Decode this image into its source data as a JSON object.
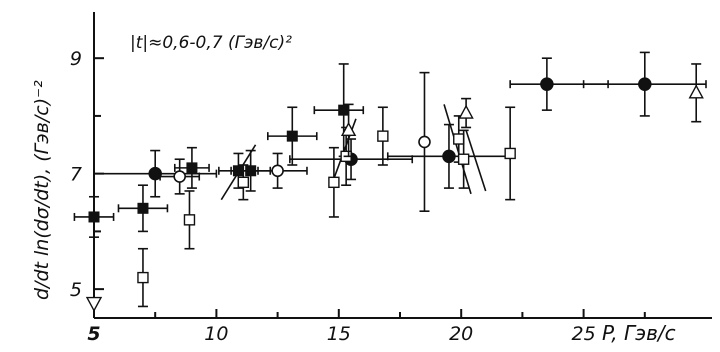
{
  "chart_data": {
    "type": "scatter",
    "title": "",
    "annotation": "|t|≈0,6-0,7 (Гэв/с)²",
    "xlabel": "P, Гэв/с",
    "ylabel": "d/dt ln(dσ/dt), (Гэв/с)⁻²",
    "xlim": [
      5,
      30
    ],
    "ylim": [
      4.5,
      9.8
    ],
    "x_ticks": [
      5,
      10,
      15,
      20,
      25
    ],
    "x_tick_labels": [
      "5",
      "10",
      "15",
      "20",
      "25"
    ],
    "y_ticks": [
      5,
      7,
      9
    ],
    "y_tick_labels": [
      "5",
      "7",
      "9"
    ],
    "grid": false,
    "series": [
      {
        "marker": "filled-circle",
        "points": [
          {
            "x": 7.5,
            "y": 7.0,
            "yerr": 0.4,
            "xerr": [
              2.5,
              2.5
            ]
          },
          {
            "x": 15.5,
            "y": 7.25,
            "yerr": 0.35,
            "xerr": [
              2.5,
              2.5
            ]
          },
          {
            "x": 19.5,
            "y": 7.3,
            "yerr": 0.55,
            "xerr": [
              2.5,
              2.5
            ]
          },
          {
            "x": 23.5,
            "y": 8.55,
            "yerr": 0.45,
            "xerr": [
              1.5,
              2.5
            ]
          },
          {
            "x": 27.5,
            "y": 8.55,
            "yerr": 0.55,
            "xerr": [
              2.5,
              2.5
            ]
          }
        ]
      },
      {
        "marker": "filled-square",
        "points": [
          {
            "x": 5.0,
            "y": 6.25,
            "yerr": 0.35,
            "xerr": [
              0.8,
              0.8
            ]
          },
          {
            "x": 7.0,
            "y": 6.4,
            "yerr": 0.4,
            "xerr": [
              1.0,
              1.0
            ]
          },
          {
            "x": 9.0,
            "y": 7.1,
            "yerr": 0.35,
            "xerr": [
              0.7,
              0.7
            ]
          },
          {
            "x": 10.9,
            "y": 7.05,
            "yerr": 0.3,
            "xerr": [
              0.8,
              0.8
            ]
          },
          {
            "x": 11.4,
            "y": 7.05,
            "yerr": 0.35,
            "xerr": [
              0.8,
              0.8
            ]
          },
          {
            "x": 13.1,
            "y": 7.65,
            "yerr": 0.5,
            "xerr": [
              1.0,
              1.0
            ]
          },
          {
            "x": 15.2,
            "y": 8.1,
            "yerr": 0.8,
            "xerr": [
              1.2,
              0.8
            ]
          }
        ]
      },
      {
        "marker": "open-circle",
        "points": [
          {
            "x": 8.5,
            "y": 6.95,
            "yerr": 0.3,
            "xerr": [
              0.8,
              0.8
            ]
          },
          {
            "x": 12.5,
            "y": 7.05,
            "yerr": 0.3,
            "xerr": [
              1.2,
              1.2
            ]
          },
          {
            "x": 18.5,
            "y": 7.55,
            "yerr": 1.2,
            "xerr": [
              0,
              0
            ]
          }
        ]
      },
      {
        "marker": "open-square",
        "points": [
          {
            "x": 7.0,
            "y": 5.2,
            "yerr": 0.5
          },
          {
            "x": 8.9,
            "y": 6.2,
            "yerr": 0.5
          },
          {
            "x": 11.1,
            "y": 6.85,
            "yerr": 0.3
          },
          {
            "x": 14.8,
            "y": 6.85,
            "yerr": 0.6
          },
          {
            "x": 15.3,
            "y": 7.3,
            "yerr": 0.5
          },
          {
            "x": 16.8,
            "y": 7.65,
            "yerr": 0.5
          },
          {
            "x": 19.9,
            "y": 7.6,
            "yerr": 0.4
          },
          {
            "x": 20.1,
            "y": 7.25,
            "yerr": 0.5
          },
          {
            "x": 22.0,
            "y": 7.35,
            "yerr": 0.8
          }
        ]
      },
      {
        "marker": "open-triangle-up",
        "points": [
          {
            "x": 15.4,
            "y": 7.75,
            "yerr": 0.45
          },
          {
            "x": 20.2,
            "y": 8.05,
            "yerr": 0.25
          },
          {
            "x": 29.6,
            "y": 8.4,
            "yerr": 0.5
          }
        ]
      },
      {
        "marker": "open-triangle-down",
        "points": [
          {
            "x": 5.0,
            "y": 4.75,
            "yerr": 0
          }
        ]
      }
    ],
    "slope_lines": [
      {
        "x1": 10.2,
        "y1": 6.55,
        "x2": 11.6,
        "y2": 7.5
      },
      {
        "x1": 14.7,
        "y1": 6.8,
        "x2": 15.7,
        "y2": 7.95
      },
      {
        "x1": 19.3,
        "y1": 8.2,
        "x2": 20.4,
        "y2": 6.65
      },
      {
        "x1": 20.2,
        "y1": 7.75,
        "x2": 21.0,
        "y2": 6.7
      }
    ]
  }
}
